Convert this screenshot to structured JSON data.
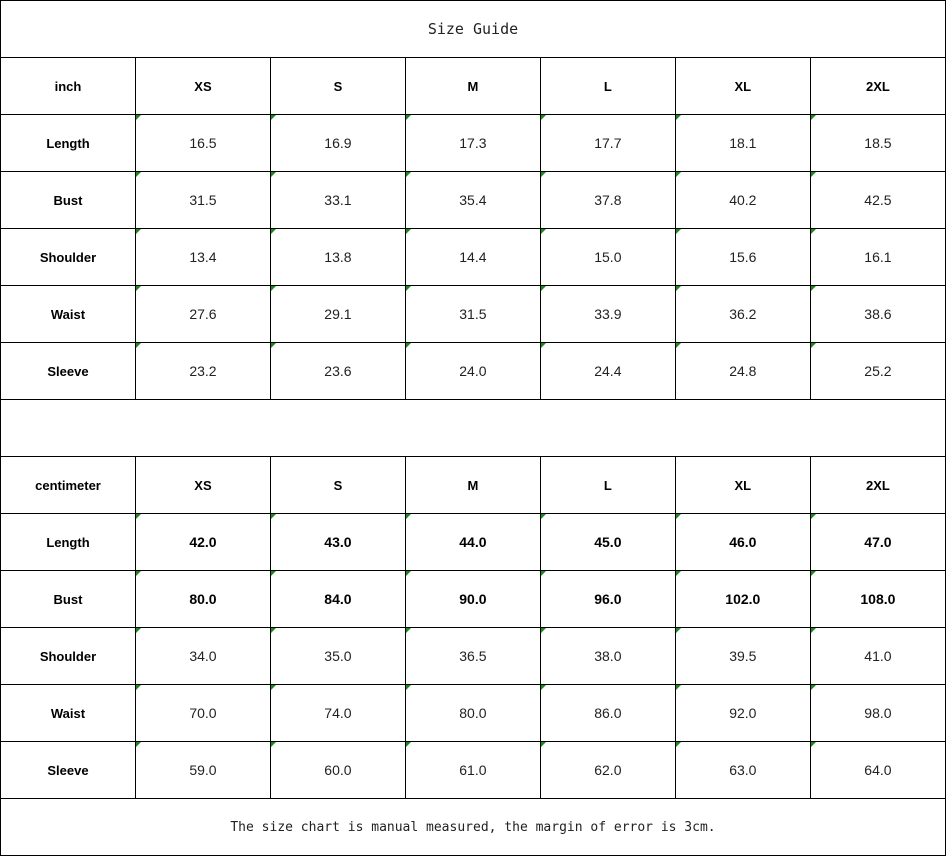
{
  "title": "Size Guide",
  "sizes": [
    "XS",
    "S",
    "M",
    "L",
    "XL",
    "2XL"
  ],
  "inch": {
    "unit_label": "inch",
    "rows": [
      {
        "label": "Length",
        "values": [
          "16.5",
          "16.9",
          "17.3",
          "17.7",
          "18.1",
          "18.5"
        ]
      },
      {
        "label": "Bust",
        "values": [
          "31.5",
          "33.1",
          "35.4",
          "37.8",
          "40.2",
          "42.5"
        ]
      },
      {
        "label": "Shoulder",
        "values": [
          "13.4",
          "13.8",
          "14.4",
          "15.0",
          "15.6",
          "16.1"
        ]
      },
      {
        "label": "Waist",
        "values": [
          "27.6",
          "29.1",
          "31.5",
          "33.9",
          "36.2",
          "38.6"
        ]
      },
      {
        "label": "Sleeve",
        "values": [
          "23.2",
          "23.6",
          "24.0",
          "24.4",
          "24.8",
          "25.2"
        ]
      }
    ]
  },
  "centimeter": {
    "unit_label": "centimeter",
    "rows": [
      {
        "label": "Length",
        "bold": true,
        "values": [
          "42.0",
          "43.0",
          "44.0",
          "45.0",
          "46.0",
          "47.0"
        ]
      },
      {
        "label": "Bust",
        "bold": true,
        "values": [
          "80.0",
          "84.0",
          "90.0",
          "96.0",
          "102.0",
          "108.0"
        ]
      },
      {
        "label": "Shoulder",
        "values": [
          "34.0",
          "35.0",
          "36.5",
          "38.0",
          "39.5",
          "41.0"
        ]
      },
      {
        "label": "Waist",
        "values": [
          "70.0",
          "74.0",
          "80.0",
          "86.0",
          "92.0",
          "98.0"
        ]
      },
      {
        "label": "Sleeve",
        "values": [
          "59.0",
          "60.0",
          "61.0",
          "62.0",
          "63.0",
          "64.0"
        ]
      }
    ]
  },
  "note": "The size chart is manual measured, the margin of error is 3cm.",
  "colors": {
    "cell_marker": "#1a8a1a",
    "border": "#000000"
  }
}
